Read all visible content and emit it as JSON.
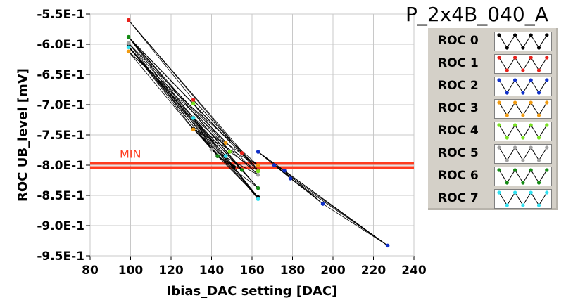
{
  "title": "P_2x4B_040_A",
  "chart_data": {
    "type": "line",
    "title": "P_2x4B_040_A",
    "xlabel": "Ibias_DAC setting [DAC]",
    "ylabel": "ROC UB_level [mV]",
    "xlim": [
      80,
      240
    ],
    "ylim": [
      -0.95,
      -0.55
    ],
    "xticks": [
      "80",
      "100",
      "120",
      "140",
      "160",
      "180",
      "200",
      "220",
      "240"
    ],
    "yticks": [
      "-5.5E-1",
      "-6.0E-1",
      "-6.5E-1",
      "-7.0E-1",
      "-7.5E-1",
      "-8.0E-1",
      "-8.5E-1",
      "-9.0E-1",
      "-9.5E-1"
    ],
    "grid": true,
    "min_band": {
      "label": "MIN",
      "y": [
        -0.797,
        -0.804
      ],
      "color": "#ff3b1f"
    },
    "legend_position": "right",
    "series": [
      {
        "name": "ROC 0",
        "color": "#000000",
        "x": [
          99,
          131,
          143,
          151,
          163
        ],
        "y": [
          -0.603,
          -0.74,
          -0.785,
          -0.803,
          -0.853
        ]
      },
      {
        "name": "ROC 1",
        "color": "#e8201a",
        "x": [
          99,
          131,
          155,
          163
        ],
        "y": [
          -0.56,
          -0.692,
          -0.78,
          -0.808
        ]
      },
      {
        "name": "ROC 2",
        "color": "#1030c8",
        "x": [
          163,
          171,
          176,
          179,
          195,
          227
        ],
        "y": [
          -0.778,
          -0.8,
          -0.809,
          -0.822,
          -0.864,
          -0.933
        ]
      },
      {
        "name": "ROC 3",
        "color": "#f09a10",
        "x": [
          99,
          131,
          147,
          163
        ],
        "y": [
          -0.612,
          -0.741,
          -0.763,
          -0.8
        ]
      },
      {
        "name": "ROC 4",
        "color": "#78e020",
        "x": [
          99,
          131,
          149,
          163
        ],
        "y": [
          -0.588,
          -0.698,
          -0.778,
          -0.81
        ]
      },
      {
        "name": "ROC 5",
        "color": "#a0a0a0",
        "x": [
          99,
          131,
          140,
          163
        ],
        "y": [
          -0.598,
          -0.721,
          -0.774,
          -0.816
        ]
      },
      {
        "name": "ROC 6",
        "color": "#148a14",
        "x": [
          99,
          131,
          143,
          155,
          163
        ],
        "y": [
          -0.588,
          -0.722,
          -0.785,
          -0.808,
          -0.838
        ]
      },
      {
        "name": "ROC 7",
        "color": "#30e0f0",
        "x": [
          99,
          131,
          147,
          163
        ],
        "y": [
          -0.605,
          -0.722,
          -0.785,
          -0.856
        ]
      }
    ]
  }
}
